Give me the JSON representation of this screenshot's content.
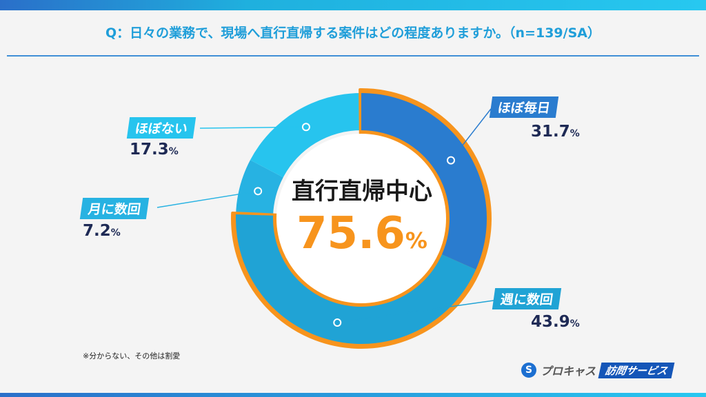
{
  "title": "Q：日々の業務で、現場へ直行直帰する案件はどの程度ありますか。（n=139/SA）",
  "chart_data": {
    "type": "pie",
    "subtype": "donut",
    "start": "top, clockwise",
    "categories": [
      "ほぼ毎日",
      "週に数回",
      "月に数回",
      "ほぼない"
    ],
    "values": [
      31.7,
      43.9,
      7.2,
      17.3
    ],
    "value_labels": [
      "31.7",
      "43.9",
      "7.2",
      "17.3"
    ],
    "unit": "%",
    "colors": [
      "#2a7ccf",
      "#20a3d5",
      "#27b2e2",
      "#27c4ee"
    ],
    "highlight": {
      "categories": [
        "ほぼ毎日",
        "週に数回"
      ],
      "outline_color": "#f7941d",
      "label": "直行直帰中心",
      "value": "75.6",
      "unit": "%"
    }
  },
  "note": "※分からない、その他は割愛",
  "logo": {
    "mark": "S",
    "name": "プロキャス",
    "service": "訪問サービス"
  }
}
